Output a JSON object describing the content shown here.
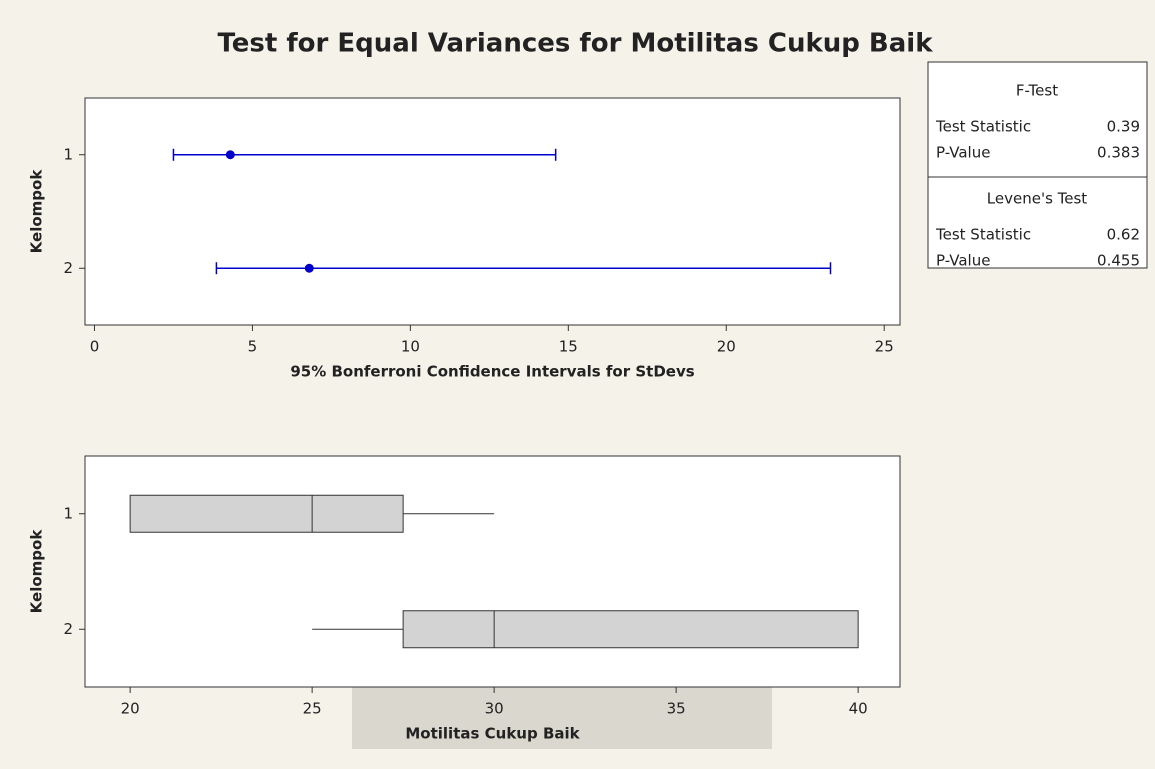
{
  "title": "Test for Equal Variances for Motilitas Cukup Baik",
  "chart_data": [
    {
      "type": "interval",
      "ylabel": "Kelompok",
      "xlabel": "95% Bonferroni Confidence Intervals for StDevs",
      "categories": [
        "1",
        "2"
      ],
      "values": [
        4.3,
        6.8
      ],
      "lower": [
        2.5,
        3.86
      ],
      "upper": [
        14.6,
        23.3
      ],
      "color": "#0000cc",
      "xlim": [
        -0.3,
        25.5
      ],
      "xticks": [
        0,
        5,
        10,
        15,
        20,
        25
      ]
    },
    {
      "type": "box",
      "ylabel": "Kelompok",
      "xlabel": "Motilitas Cukup Baik",
      "categories": [
        "1",
        "2"
      ],
      "min": [
        20,
        25
      ],
      "q1": [
        20,
        27.5
      ],
      "median": [
        25,
        30
      ],
      "q3": [
        27.5,
        40
      ],
      "max": [
        30,
        40
      ],
      "color": "#d3d3d3",
      "xlim": [
        18.76,
        41.15
      ],
      "xticks": [
        20,
        25,
        30,
        35,
        40
      ]
    }
  ],
  "table": {
    "sections": [
      {
        "title": "F-Test",
        "rows": [
          [
            "Test Statistic",
            0.39
          ],
          [
            "P-Value",
            0.383
          ]
        ]
      },
      {
        "title": "Levene's Test",
        "rows": [
          [
            "Test Statistic",
            0.62
          ],
          [
            "P-Value",
            0.455
          ]
        ]
      }
    ]
  }
}
